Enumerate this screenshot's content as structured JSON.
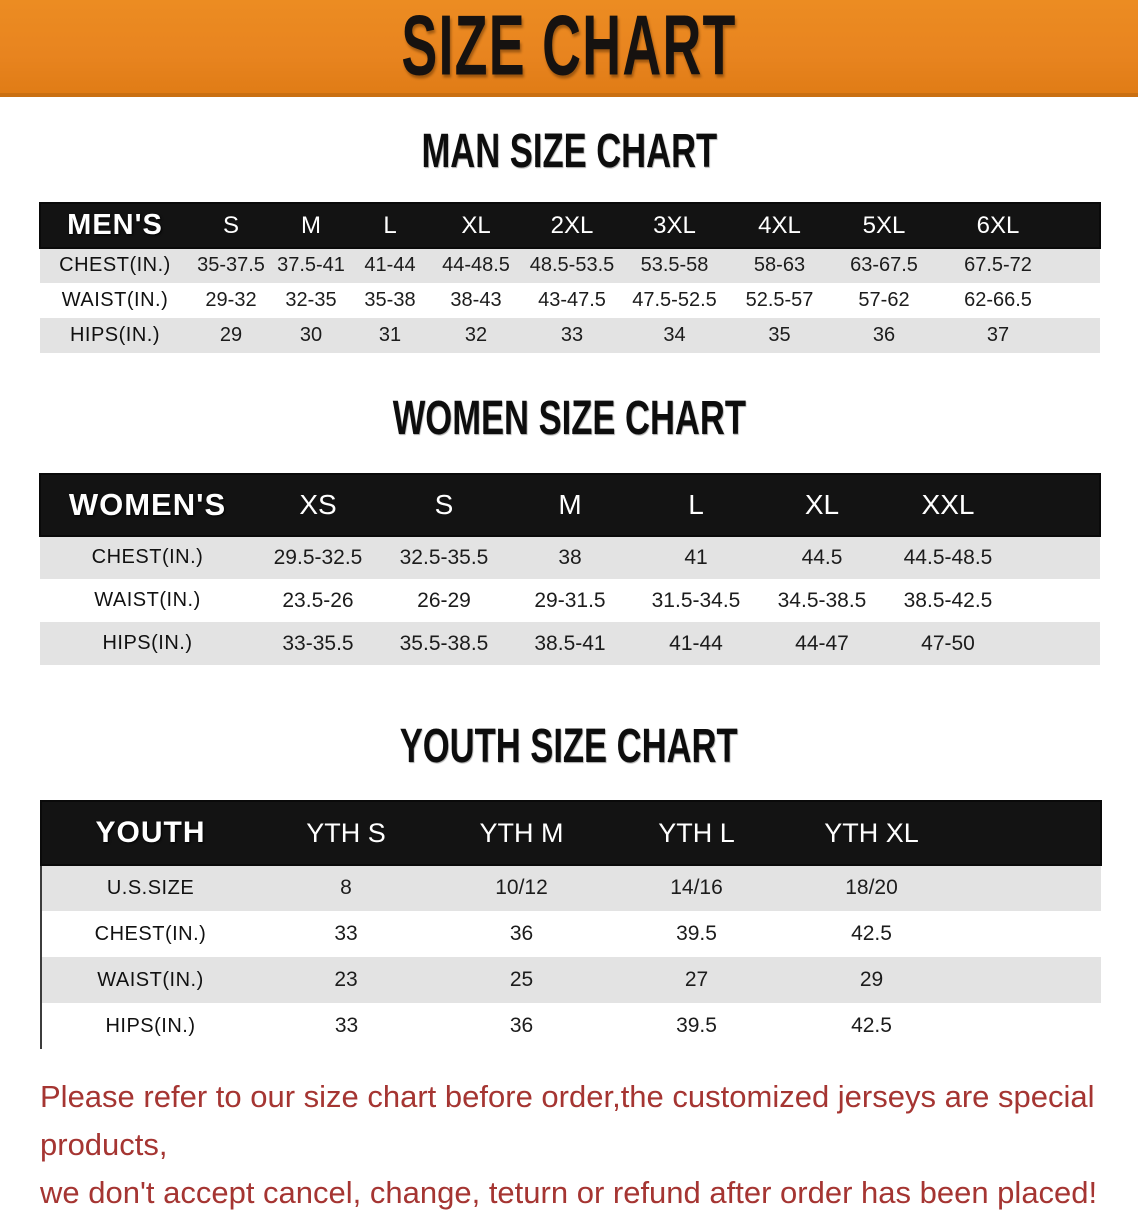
{
  "banner": {
    "title": "SIZE CHART"
  },
  "colors": {
    "banner_orange": "#E8841F",
    "banner_edge": "#C96F12",
    "header_bar_black": "#131313",
    "row_stripe_gray": "#E3E3E3",
    "row_stripe_white": "#FFFFFF",
    "disclaimer_red": "#A53532"
  },
  "sections": [
    {
      "id": "men",
      "title": "MAN SIZE CHART",
      "corner_label": "MEN'S",
      "columns": [
        "S",
        "M",
        "L",
        "XL",
        "2XL",
        "3XL",
        "4XL",
        "5XL",
        "6XL"
      ],
      "rows": [
        {
          "label": "CHEST(IN.)",
          "values": [
            "35-37.5",
            "37.5-41",
            "41-44",
            "44-48.5",
            "48.5-53.5",
            "53.5-58",
            "58-63",
            "63-67.5",
            "67.5-72"
          ]
        },
        {
          "label": "WAIST(IN.)",
          "values": [
            "29-32",
            "32-35",
            "35-38",
            "38-43",
            "43-47.5",
            "47.5-52.5",
            "52.5-57",
            "57-62",
            "62-66.5"
          ]
        },
        {
          "label": "HIPS(IN.)",
          "values": [
            "29",
            "30",
            "31",
            "32",
            "33",
            "34",
            "35",
            "36",
            "37"
          ]
        }
      ]
    },
    {
      "id": "women",
      "title": "WOMEN SIZE CHART",
      "corner_label": "WOMEN'S",
      "columns": [
        "XS",
        "S",
        "M",
        "L",
        "XL",
        "XXL"
      ],
      "rows": [
        {
          "label": "CHEST(IN.)",
          "values": [
            "29.5-32.5",
            "32.5-35.5",
            "38",
            "41",
            "44.5",
            "44.5-48.5"
          ]
        },
        {
          "label": "WAIST(IN.)",
          "values": [
            "23.5-26",
            "26-29",
            "29-31.5",
            "31.5-34.5",
            "34.5-38.5",
            "38.5-42.5"
          ]
        },
        {
          "label": "HIPS(IN.)",
          "values": [
            "33-35.5",
            "35.5-38.5",
            "38.5-41",
            "41-44",
            "44-47",
            "47-50"
          ]
        }
      ]
    },
    {
      "id": "youth",
      "title": "YOUTH SIZE CHART",
      "corner_label": "YOUTH",
      "columns": [
        "YTH S",
        "YTH M",
        "YTH L",
        "YTH XL"
      ],
      "rows": [
        {
          "label": "U.S.SIZE",
          "values": [
            "8",
            "10/12",
            "14/16",
            "18/20"
          ]
        },
        {
          "label": "CHEST(IN.)",
          "values": [
            "33",
            "36",
            "39.5",
            "42.5"
          ]
        },
        {
          "label": "WAIST(IN.)",
          "values": [
            "23",
            "25",
            "27",
            "29"
          ]
        },
        {
          "label": "HIPS(IN.)",
          "values": [
            "33",
            "36",
            "39.5",
            "42.5"
          ]
        }
      ]
    }
  ],
  "disclaimer": {
    "line1": "Please refer to our size chart before order,the customized jerseys are special products,",
    "line2": "we don't accept cancel, change, teturn or refund after order has been placed!"
  }
}
